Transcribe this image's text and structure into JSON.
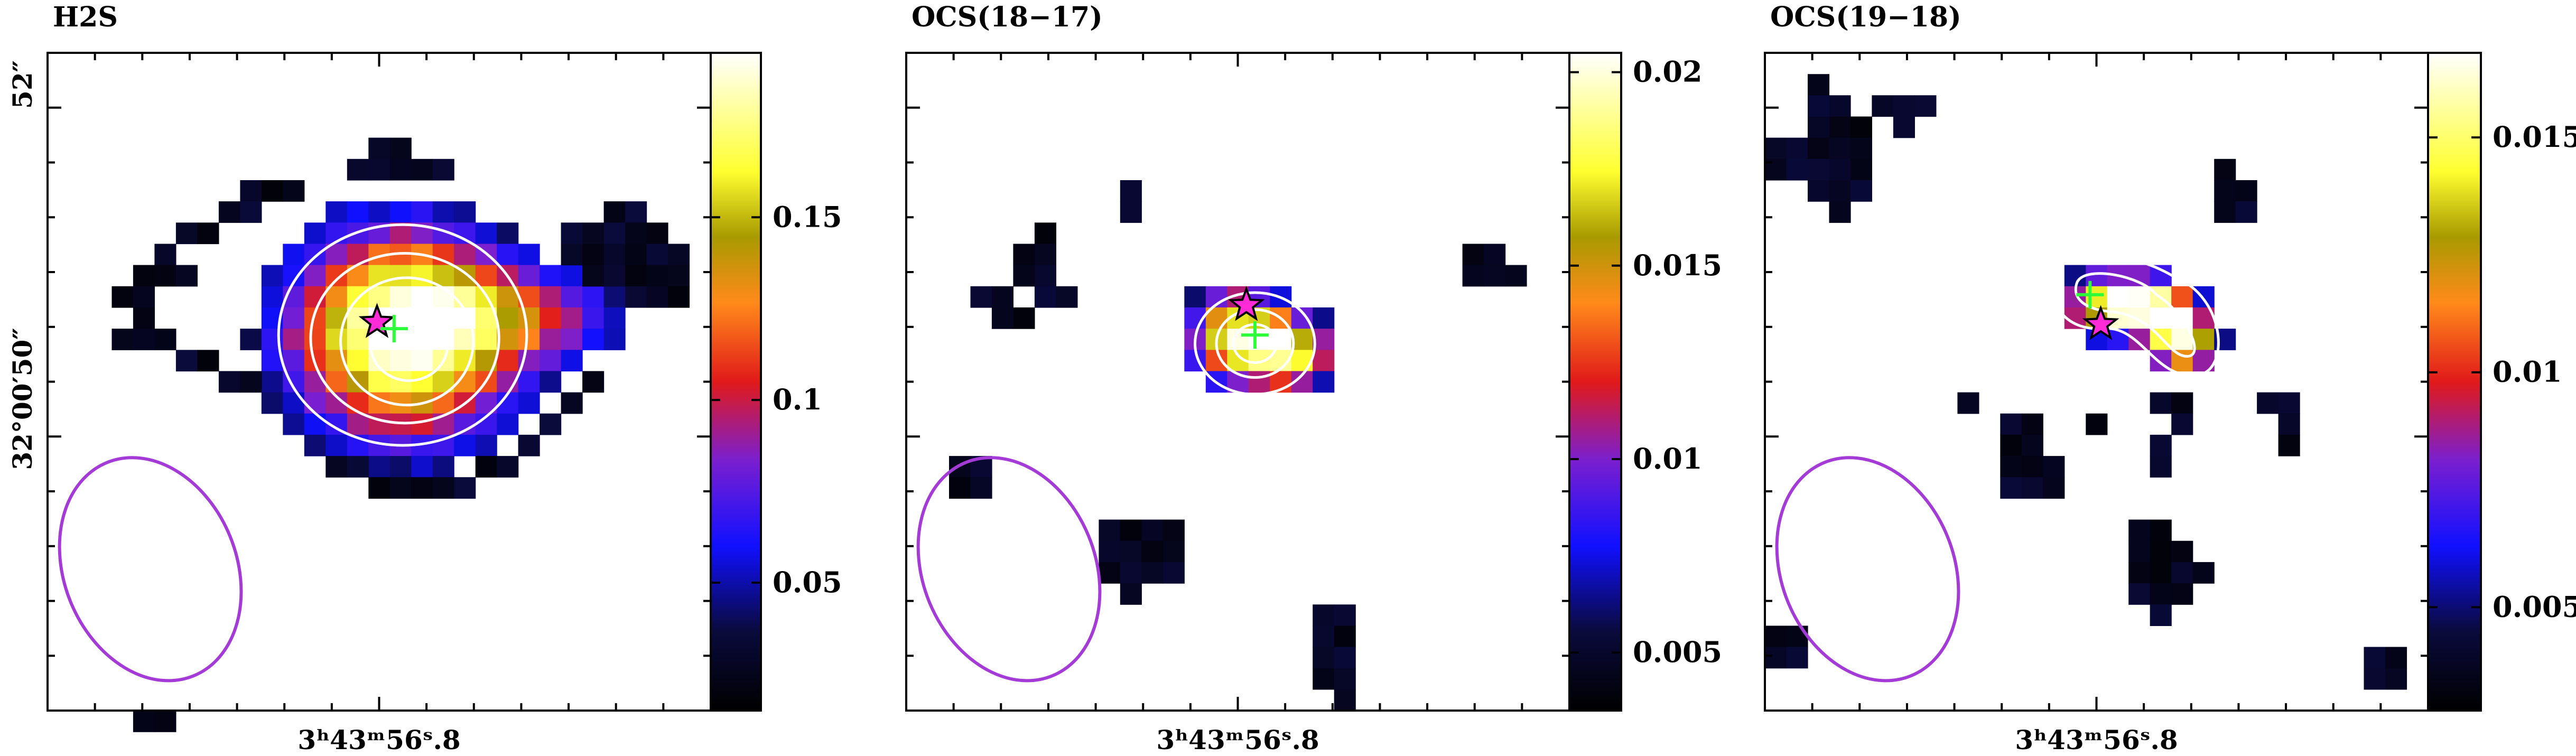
{
  "figure": {
    "colors": {
      "beam": "#a43bd6",
      "contour": "#ffffff",
      "cross": "#2cff3a",
      "star_fill": "#ff2bd6",
      "star_stroke": "#000000"
    },
    "colormap": "black-blue-purple-red-orange-yellow-white",
    "yaxis": {
      "ticks": [
        {
          "label": "52″",
          "value": 52
        },
        {
          "label": "32°00′50″",
          "value": 50
        }
      ]
    },
    "xaxis_label": "3ʰ43ᵐ56ˢ.8"
  },
  "chart_data": [
    {
      "type": "heatmap",
      "title": "H2S",
      "colorbar": {
        "min": 0.015,
        "max": 0.195,
        "ticks": [
          0.05,
          0.1,
          0.15
        ],
        "tick_labels": [
          "0.05",
          "0.1",
          "0.15"
        ]
      },
      "contours": "white",
      "markers": {
        "star": "continuum peak",
        "cross": "emission peak"
      }
    },
    {
      "type": "heatmap",
      "title": "OCS(18−17)",
      "colorbar": {
        "min": 0.0035,
        "max": 0.0205,
        "ticks": [
          0.005,
          0.01,
          0.015,
          0.02
        ],
        "tick_labels": [
          "0.005",
          "0.01",
          "0.015",
          "0.02"
        ]
      },
      "contours": "white",
      "markers": {
        "star": "continuum peak",
        "cross": "emission peak"
      }
    },
    {
      "type": "heatmap",
      "title": "OCS(19−18)",
      "colorbar": {
        "min": 0.0028,
        "max": 0.0168,
        "ticks": [
          0.005,
          0.01,
          0.015
        ],
        "tick_labels": [
          "0.005",
          "0.01",
          "0.015"
        ]
      },
      "contours": "white",
      "markers": {
        "star": "continuum peak",
        "cross": "emission peak"
      }
    }
  ]
}
